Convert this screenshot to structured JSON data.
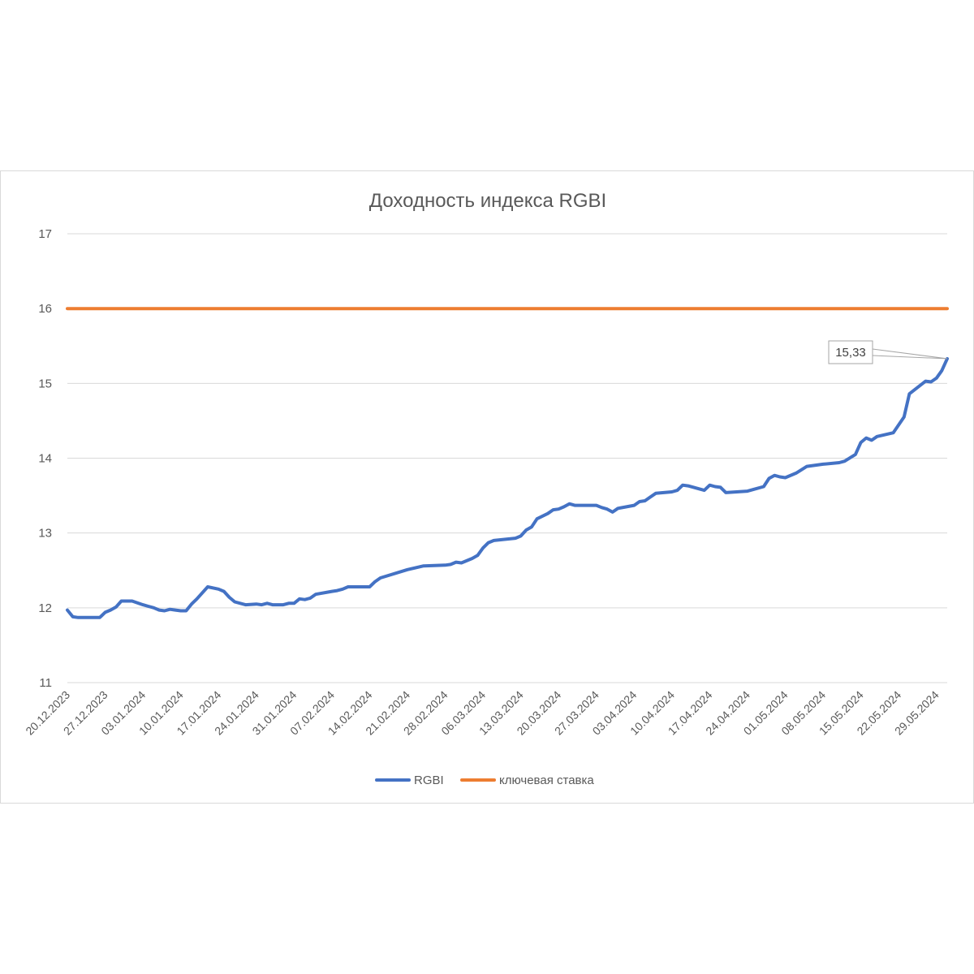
{
  "chart_data": {
    "type": "line",
    "title": "Доходность индекса RGBI",
    "ylim": [
      11,
      17
    ],
    "yticks": [
      11,
      12,
      13,
      14,
      15,
      16,
      17
    ],
    "x_tick_labels": [
      "20.12.2023",
      "27.12.2023",
      "03.01.2024",
      "10.01.2024",
      "17.01.2024",
      "24.01.2024",
      "31.01.2024",
      "07.02.2024",
      "14.02.2024",
      "21.02.2024",
      "28.02.2024",
      "06.03.2024",
      "13.03.2024",
      "20.03.2024",
      "27.03.2024",
      "03.04.2024",
      "10.04.2024",
      "17.04.2024",
      "24.04.2024",
      "01.05.2024",
      "08.05.2024",
      "15.05.2024",
      "22.05.2024",
      "29.05.2024"
    ],
    "grid": true,
    "legend": "bottom",
    "series": [
      {
        "name": "RGBI",
        "color": "#4472C4",
        "points": [
          [
            "2023-12-20",
            11.97
          ],
          [
            "2023-12-21",
            11.88
          ],
          [
            "2023-12-22",
            11.87
          ],
          [
            "2023-12-25",
            11.87
          ],
          [
            "2023-12-26",
            11.87
          ],
          [
            "2023-12-27",
            11.94
          ],
          [
            "2023-12-28",
            11.97
          ],
          [
            "2023-12-29",
            12.01
          ],
          [
            "2023-12-30",
            12.09
          ],
          [
            "2024-01-01",
            12.09
          ],
          [
            "2024-01-03",
            12.04
          ],
          [
            "2024-01-04",
            12.02
          ],
          [
            "2024-01-05",
            12.0
          ],
          [
            "2024-01-06",
            11.97
          ],
          [
            "2024-01-07",
            11.96
          ],
          [
            "2024-01-08",
            11.98
          ],
          [
            "2024-01-09",
            11.97
          ],
          [
            "2024-01-10",
            11.96
          ],
          [
            "2024-01-11",
            11.96
          ],
          [
            "2024-01-12",
            12.05
          ],
          [
            "2024-01-13",
            12.12
          ],
          [
            "2024-01-15",
            12.28
          ],
          [
            "2024-01-17",
            12.25
          ],
          [
            "2024-01-18",
            12.22
          ],
          [
            "2024-01-19",
            12.14
          ],
          [
            "2024-01-20",
            12.08
          ],
          [
            "2024-01-22",
            12.04
          ],
          [
            "2024-01-24",
            12.05
          ],
          [
            "2024-01-25",
            12.04
          ],
          [
            "2024-01-26",
            12.06
          ],
          [
            "2024-01-27",
            12.04
          ],
          [
            "2024-01-29",
            12.04
          ],
          [
            "2024-01-30",
            12.06
          ],
          [
            "2024-01-31",
            12.06
          ],
          [
            "2024-02-01",
            12.12
          ],
          [
            "2024-02-02",
            12.11
          ],
          [
            "2024-02-03",
            12.13
          ],
          [
            "2024-02-04",
            12.18
          ],
          [
            "2024-02-07",
            12.22
          ],
          [
            "2024-02-08",
            12.23
          ],
          [
            "2024-02-09",
            12.25
          ],
          [
            "2024-02-10",
            12.28
          ],
          [
            "2024-02-14",
            12.28
          ],
          [
            "2024-02-15",
            12.35
          ],
          [
            "2024-02-16",
            12.4
          ],
          [
            "2024-02-21",
            12.51
          ],
          [
            "2024-02-24",
            12.56
          ],
          [
            "2024-02-28",
            12.57
          ],
          [
            "2024-02-29",
            12.58
          ],
          [
            "2024-03-01",
            12.61
          ],
          [
            "2024-03-02",
            12.6
          ],
          [
            "2024-03-04",
            12.66
          ],
          [
            "2024-03-05",
            12.7
          ],
          [
            "2024-03-06",
            12.8
          ],
          [
            "2024-03-07",
            12.87
          ],
          [
            "2024-03-08",
            12.9
          ],
          [
            "2024-03-12",
            12.93
          ],
          [
            "2024-03-13",
            12.96
          ],
          [
            "2024-03-14",
            13.04
          ],
          [
            "2024-03-15",
            13.08
          ],
          [
            "2024-03-16",
            13.19
          ],
          [
            "2024-03-18",
            13.26
          ],
          [
            "2024-03-19",
            13.31
          ],
          [
            "2024-03-20",
            13.32
          ],
          [
            "2024-03-21",
            13.35
          ],
          [
            "2024-03-22",
            13.39
          ],
          [
            "2024-03-23",
            13.37
          ],
          [
            "2024-03-27",
            13.37
          ],
          [
            "2024-03-28",
            13.34
          ],
          [
            "2024-03-29",
            13.32
          ],
          [
            "2024-03-30",
            13.28
          ],
          [
            "2024-03-31",
            13.33
          ],
          [
            "2024-04-03",
            13.37
          ],
          [
            "2024-04-04",
            13.42
          ],
          [
            "2024-04-05",
            13.43
          ],
          [
            "2024-04-06",
            13.48
          ],
          [
            "2024-04-07",
            13.53
          ],
          [
            "2024-04-10",
            13.55
          ],
          [
            "2024-04-11",
            13.57
          ],
          [
            "2024-04-12",
            13.64
          ],
          [
            "2024-04-13",
            13.63
          ],
          [
            "2024-04-16",
            13.57
          ],
          [
            "2024-04-17",
            13.64
          ],
          [
            "2024-04-18",
            13.62
          ],
          [
            "2024-04-19",
            13.61
          ],
          [
            "2024-04-20",
            13.54
          ],
          [
            "2024-04-24",
            13.56
          ],
          [
            "2024-04-25",
            13.58
          ],
          [
            "2024-04-27",
            13.62
          ],
          [
            "2024-04-28",
            13.73
          ],
          [
            "2024-04-29",
            13.77
          ],
          [
            "2024-04-30",
            13.75
          ],
          [
            "2024-05-01",
            13.74
          ],
          [
            "2024-05-03",
            13.8
          ],
          [
            "2024-05-05",
            13.89
          ],
          [
            "2024-05-08",
            13.92
          ],
          [
            "2024-05-11",
            13.94
          ],
          [
            "2024-05-12",
            13.96
          ],
          [
            "2024-05-14",
            14.05
          ],
          [
            "2024-05-15",
            14.21
          ],
          [
            "2024-05-16",
            14.27
          ],
          [
            "2024-05-17",
            14.24
          ],
          [
            "2024-05-18",
            14.29
          ],
          [
            "2024-05-21",
            14.34
          ],
          [
            "2024-05-23",
            14.55
          ],
          [
            "2024-05-24",
            14.86
          ],
          [
            "2024-05-27",
            15.03
          ],
          [
            "2024-05-28",
            15.02
          ],
          [
            "2024-05-29",
            15.07
          ],
          [
            "2024-05-30",
            15.17
          ],
          [
            "2024-05-31",
            15.33
          ]
        ]
      },
      {
        "name": "ключевая ставка",
        "color": "#ED7D31",
        "points": [
          [
            "2023-12-20",
            16
          ],
          [
            "2024-05-31",
            16
          ]
        ]
      }
    ],
    "annotations": [
      {
        "series": "RGBI",
        "date": "2024-05-31",
        "value": 15.33,
        "text": "15,33"
      }
    ]
  }
}
